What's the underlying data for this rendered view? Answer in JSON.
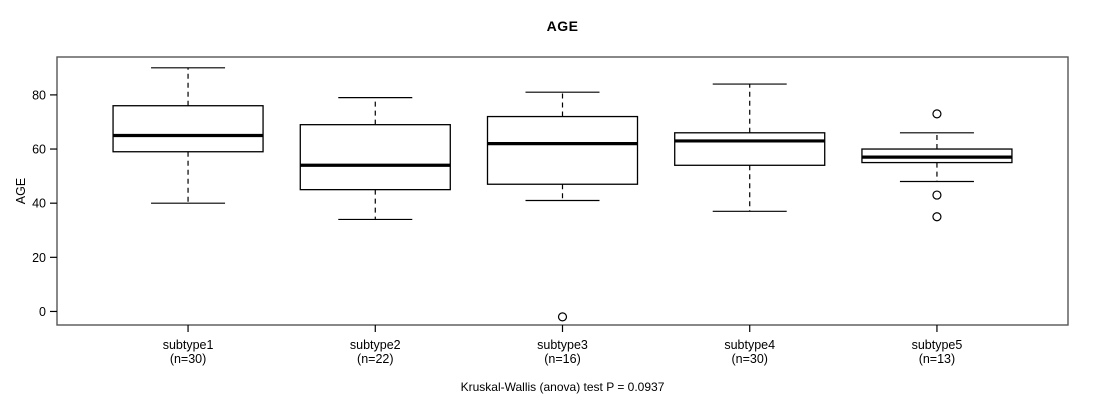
{
  "header": {
    "title": "AGE"
  },
  "y_axis": {
    "label": "AGE"
  },
  "footer": {
    "caption": "Kruskal-Wallis (anova) test P = 0.0937"
  },
  "chart_data": {
    "type": "boxplot",
    "title": "AGE",
    "ylabel": "AGE",
    "xlabel": "",
    "ylim": [
      -5,
      94
    ],
    "yticks": [
      0,
      20,
      40,
      60,
      80
    ],
    "grid": false,
    "legend_position": "none",
    "categories": [
      "subtype1",
      "subtype2",
      "subtype3",
      "subtype4",
      "subtype5"
    ],
    "category_sublabels": [
      "(n=30)",
      "(n=22)",
      "(n=16)",
      "(n=30)",
      "(n=13)"
    ],
    "series": [
      {
        "name": "subtype1",
        "n": 30,
        "whisker_low": 40,
        "q1": 59,
        "median": 65,
        "q3": 76,
        "whisker_high": 90,
        "outliers": []
      },
      {
        "name": "subtype2",
        "n": 22,
        "whisker_low": 34,
        "q1": 45,
        "median": 54,
        "q3": 69,
        "whisker_high": 79,
        "outliers": []
      },
      {
        "name": "subtype3",
        "n": 16,
        "whisker_low": 41,
        "q1": 47,
        "median": 62,
        "q3": 72,
        "whisker_high": 81,
        "outliers": [
          -2
        ]
      },
      {
        "name": "subtype4",
        "n": 30,
        "whisker_low": 37,
        "q1": 54,
        "median": 63,
        "q3": 66,
        "whisker_high": 84,
        "outliers": []
      },
      {
        "name": "subtype5",
        "n": 13,
        "whisker_low": 48,
        "q1": 55,
        "median": 57,
        "q3": 60,
        "whisker_high": 66,
        "outliers": [
          73,
          43,
          35
        ]
      }
    ],
    "annotation": "Kruskal-Wallis (anova) test P = 0.0937",
    "colors": {
      "line": "#000000",
      "median": "#000000",
      "frame": "#555555",
      "background": "#ffffff",
      "text": "#000000"
    }
  }
}
